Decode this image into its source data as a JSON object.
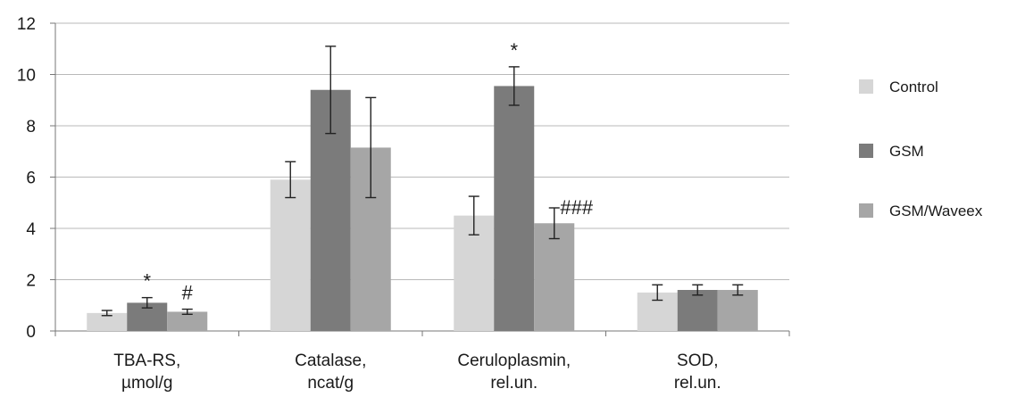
{
  "chart_data": {
    "type": "bar",
    "categories": [
      [
        "TBA-RS,",
        "µmol/g"
      ],
      [
        "Catalase,",
        "ncat/g"
      ],
      [
        "Ceruloplasmin,",
        "rel.un."
      ],
      [
        "SOD,",
        "rel.un."
      ]
    ],
    "series": [
      {
        "name": "Control",
        "color": "#d6d6d6",
        "values": [
          0.7,
          5.9,
          4.5,
          1.5
        ],
        "errors": [
          0.1,
          0.7,
          0.75,
          0.3
        ],
        "annotations": [
          "",
          "",
          "",
          ""
        ]
      },
      {
        "name": "GSM",
        "color": "#7b7b7b",
        "values": [
          1.1,
          9.4,
          9.55,
          1.6
        ],
        "errors": [
          0.2,
          1.7,
          0.75,
          0.2
        ],
        "annotations": [
          "*",
          "",
          "*",
          ""
        ]
      },
      {
        "name": "GSM/Waveex",
        "color": "#a6a6a6",
        "values": [
          0.75,
          7.15,
          4.2,
          1.6
        ],
        "errors": [
          0.1,
          1.95,
          0.6,
          0.2
        ],
        "annotations": [
          "#",
          "",
          "###",
          ""
        ]
      }
    ],
    "ylim": [
      0,
      12
    ],
    "yticks": [
      "0",
      "2",
      "4",
      "6",
      "8",
      "10",
      "12"
    ],
    "grid": true,
    "legend_position": "right",
    "title": "",
    "xlabel": "",
    "ylabel": ""
  }
}
